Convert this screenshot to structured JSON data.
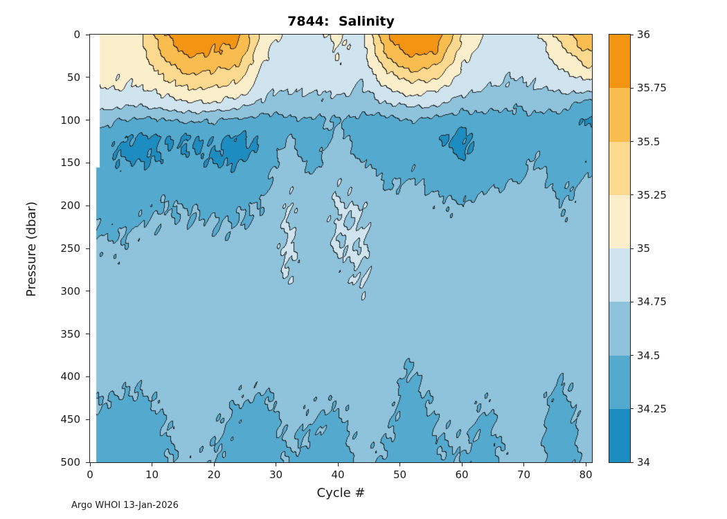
{
  "footer_text": "Argo WHOI 13-Jan-2026",
  "chart_data": {
    "type": "heatmap",
    "subtype": "filled-contour",
    "title": "7844:  Salinity",
    "xlabel": "Cycle #",
    "ylabel": "Pressure (dbar)",
    "x_range": [
      0,
      81
    ],
    "y_range": [
      0,
      500
    ],
    "y_inverted": true,
    "x_ticks": [
      0,
      10,
      20,
      30,
      40,
      50,
      60,
      70,
      80
    ],
    "y_ticks": [
      0,
      50,
      100,
      150,
      200,
      250,
      300,
      350,
      400,
      450,
      500
    ],
    "contour_line_color": "#222222",
    "colorbar": {
      "min": 34,
      "max": 36,
      "step": 0.25,
      "levels": [
        34,
        34.25,
        34.5,
        34.75,
        35,
        35.25,
        35.5,
        35.75,
        36
      ],
      "tick_labels": [
        "34",
        "34.25",
        "34.5",
        "34.75",
        "35",
        "35.25",
        "35.5",
        "35.75",
        "36"
      ],
      "band_colors": [
        "#1d8dc1",
        "#53a9ce",
        "#8fc3dc",
        "#cfe4ef",
        "#fbeecb",
        "#fbd98e",
        "#f9bc4f",
        "#f49413"
      ]
    },
    "grid": {
      "x": [
        1,
        4,
        8,
        12,
        16,
        20,
        24,
        28,
        32,
        36,
        40,
        44,
        48,
        52,
        56,
        60,
        64,
        68,
        72,
        76,
        80
      ],
      "y": [
        0,
        20,
        40,
        60,
        80,
        100,
        120,
        140,
        160,
        180,
        200,
        250,
        300,
        350,
        400,
        450,
        500
      ],
      "values": [
        [
          35.1,
          35.12,
          35.2,
          35.7,
          35.95,
          35.85,
          35.8,
          35.15,
          34.9,
          34.92,
          35.05,
          34.92,
          35.75,
          35.95,
          35.85,
          35.3,
          34.92,
          34.88,
          34.92,
          35.35,
          35.75
        ],
        [
          35.08,
          35.1,
          35.15,
          35.55,
          35.85,
          35.75,
          35.7,
          35.05,
          34.87,
          34.88,
          35.0,
          34.88,
          35.6,
          35.85,
          35.75,
          35.15,
          34.88,
          34.84,
          34.88,
          35.15,
          35.5
        ],
        [
          35.06,
          35.06,
          35.1,
          35.35,
          35.6,
          35.55,
          35.45,
          34.95,
          34.83,
          34.85,
          34.95,
          34.83,
          35.3,
          35.55,
          35.45,
          34.98,
          34.84,
          34.8,
          34.84,
          35.0,
          35.2
        ],
        [
          35.03,
          35.02,
          35.0,
          35.15,
          35.3,
          35.28,
          35.2,
          34.85,
          34.78,
          34.8,
          34.85,
          34.75,
          35.05,
          35.2,
          35.1,
          34.85,
          34.76,
          34.72,
          34.76,
          34.85,
          34.9
        ],
        [
          34.9,
          34.85,
          34.82,
          34.9,
          35.0,
          34.98,
          34.9,
          34.7,
          34.65,
          34.68,
          34.7,
          34.6,
          34.75,
          34.85,
          34.8,
          34.65,
          34.6,
          34.55,
          34.6,
          34.62,
          34.45
        ],
        [
          34.62,
          34.52,
          34.45,
          34.5,
          34.55,
          34.52,
          34.45,
          34.42,
          34.45,
          34.48,
          34.5,
          34.42,
          34.45,
          34.5,
          34.45,
          34.35,
          34.42,
          34.4,
          34.42,
          34.4,
          34.22
        ],
        [
          34.42,
          34.3,
          34.2,
          34.28,
          34.22,
          34.3,
          34.2,
          34.28,
          34.5,
          34.35,
          34.55,
          34.38,
          34.3,
          34.38,
          34.28,
          34.18,
          34.32,
          34.28,
          34.42,
          34.3,
          34.35
        ],
        [
          34.36,
          34.24,
          34.18,
          34.26,
          34.28,
          34.22,
          34.18,
          34.32,
          34.6,
          34.4,
          34.62,
          34.42,
          34.34,
          34.42,
          34.32,
          34.22,
          34.38,
          34.32,
          34.48,
          34.34,
          34.42
        ],
        [
          34.36,
          34.3,
          34.28,
          34.34,
          34.34,
          34.3,
          34.28,
          34.38,
          34.68,
          34.48,
          34.7,
          34.6,
          34.42,
          34.48,
          34.38,
          34.32,
          34.44,
          34.42,
          34.55,
          34.4,
          34.48
        ],
        [
          34.4,
          34.34,
          34.38,
          34.44,
          34.4,
          34.38,
          34.38,
          34.44,
          34.74,
          34.55,
          34.74,
          34.68,
          34.5,
          34.54,
          34.46,
          34.42,
          34.5,
          34.52,
          34.6,
          34.45,
          34.54
        ],
        [
          34.44,
          34.4,
          34.45,
          34.5,
          34.48,
          34.46,
          34.46,
          34.52,
          34.76,
          34.6,
          34.76,
          34.74,
          34.58,
          34.6,
          34.54,
          34.52,
          34.58,
          34.6,
          34.64,
          34.5,
          34.6
        ],
        [
          34.54,
          34.52,
          34.56,
          34.58,
          34.58,
          34.56,
          34.56,
          34.6,
          34.78,
          34.64,
          34.76,
          34.77,
          34.62,
          34.64,
          34.6,
          34.6,
          34.62,
          34.64,
          34.64,
          34.58,
          34.62
        ],
        [
          34.6,
          34.6,
          34.6,
          34.61,
          34.61,
          34.6,
          34.6,
          34.6,
          34.74,
          34.61,
          34.66,
          34.75,
          34.6,
          34.6,
          34.6,
          34.6,
          34.6,
          34.61,
          34.6,
          34.6,
          34.6
        ],
        [
          34.6,
          34.6,
          34.6,
          34.6,
          34.6,
          34.6,
          34.6,
          34.6,
          34.62,
          34.6,
          34.6,
          34.62,
          34.6,
          34.6,
          34.6,
          34.6,
          34.6,
          34.6,
          34.6,
          34.6,
          34.6
        ],
        [
          34.6,
          34.58,
          34.56,
          34.6,
          34.6,
          34.6,
          34.58,
          34.56,
          34.6,
          34.6,
          34.6,
          34.6,
          34.6,
          34.46,
          34.6,
          34.6,
          34.6,
          34.6,
          34.6,
          34.52,
          34.6
        ],
        [
          34.46,
          34.4,
          34.38,
          34.5,
          34.6,
          34.55,
          34.46,
          34.4,
          34.56,
          34.5,
          34.46,
          34.6,
          34.55,
          34.36,
          34.52,
          34.56,
          34.46,
          34.6,
          34.6,
          34.34,
          34.6
        ],
        [
          34.4,
          34.36,
          34.36,
          34.46,
          34.55,
          34.5,
          34.4,
          34.36,
          34.5,
          34.45,
          34.4,
          34.55,
          34.46,
          34.36,
          34.46,
          34.5,
          34.42,
          34.55,
          34.55,
          34.4,
          34.55
        ]
      ]
    }
  }
}
